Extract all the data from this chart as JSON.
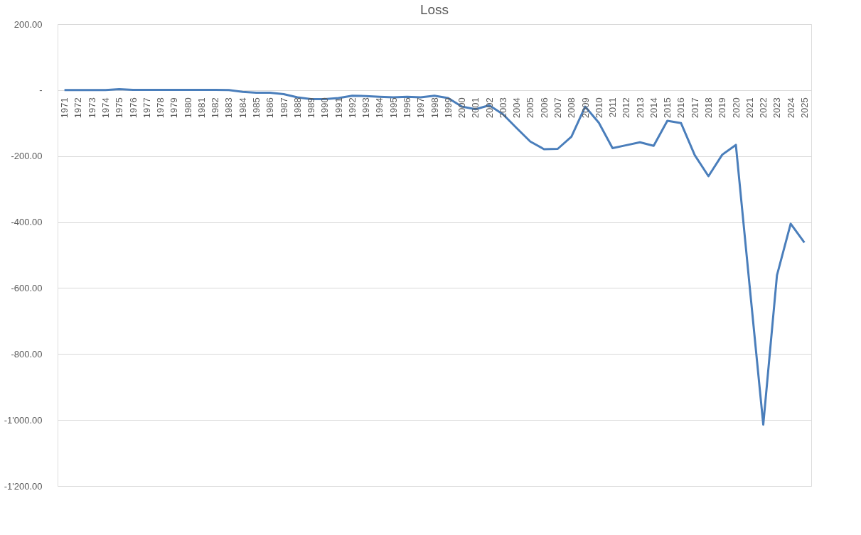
{
  "chart_data": {
    "type": "line",
    "title": "Loss",
    "categories": [
      "1971",
      "1972",
      "1973",
      "1974",
      "1975",
      "1976",
      "1977",
      "1978",
      "1979",
      "1980",
      "1981",
      "1982",
      "1983",
      "1984",
      "1985",
      "1986",
      "1987",
      "1988",
      "1989",
      "1990",
      "1991",
      "1992",
      "1993",
      "1994",
      "1995",
      "1996",
      "1997",
      "1998",
      "1999",
      "2000",
      "2001",
      "2002",
      "2003",
      "2004",
      "2005",
      "2006",
      "2007",
      "2008",
      "2009",
      "2010",
      "2011",
      "2012",
      "2013",
      "2014",
      "2015",
      "2016",
      "2017",
      "2018",
      "2019",
      "2020",
      "2021",
      "2022",
      "2023",
      "2024",
      "2025"
    ],
    "series": [
      {
        "color": "#4a7ebb",
        "values": [
          0,
          0,
          0,
          0,
          3,
          1,
          1,
          1,
          1,
          1,
          1,
          1,
          0,
          -5,
          -8,
          -8,
          -12,
          -22,
          -27,
          -27,
          -24,
          -17,
          -18,
          -20,
          -22,
          -20,
          -22,
          -17,
          -24,
          -50,
          -58,
          -46,
          -73,
          -115,
          -156,
          -179,
          -178,
          -141,
          -50,
          -99,
          -176,
          -167,
          -158,
          -169,
          -93,
          -100,
          -197,
          -261,
          -196,
          -166,
          -592,
          -1014,
          -561,
          -405,
          -462
        ]
      }
    ],
    "ylim": [
      -1200,
      200
    ],
    "yticks": [
      {
        "value": -1200,
        "label": "-1'200.00"
      },
      {
        "value": -1000,
        "label": "-1'000.00"
      },
      {
        "value": -800,
        "label": "-800.00"
      },
      {
        "value": -600,
        "label": "-600.00"
      },
      {
        "value": -400,
        "label": "-400.00"
      },
      {
        "value": -200,
        "label": "-200.00"
      },
      {
        "value": 0,
        "label": "-"
      },
      {
        "value": 200,
        "label": "200.00"
      }
    ],
    "grid": "y",
    "marker": "none",
    "line_style": "solid"
  }
}
